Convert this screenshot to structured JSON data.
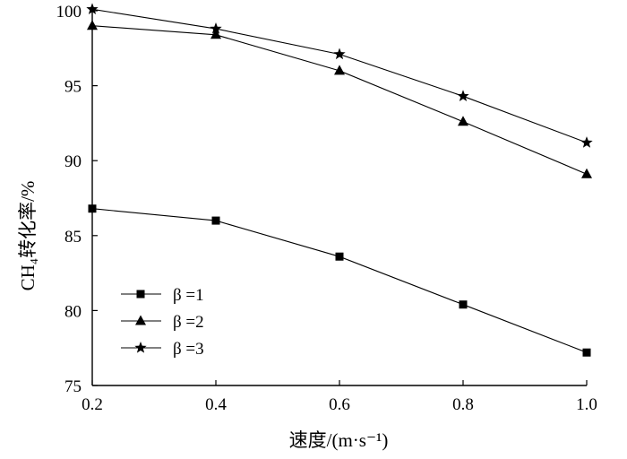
{
  "chart_data": {
    "type": "line",
    "x": [
      0.2,
      0.4,
      0.6,
      0.8,
      1.0
    ],
    "x_tick_labels": [
      "0.2",
      "0.4",
      "0.6",
      "0.8",
      "1.0"
    ],
    "y_tick_labels": [
      "75",
      "80",
      "85",
      "90",
      "95",
      "100"
    ],
    "xlim": [
      0.2,
      1.0
    ],
    "ylim": [
      75,
      100
    ],
    "xlabel": "速度/(m·s⁻¹)",
    "ylabel": "CH₄转化率/%",
    "grid": false,
    "legend_position": "bottom-left",
    "series": [
      {
        "name": "β =1",
        "marker": "square",
        "values": [
          86.8,
          86.0,
          83.6,
          80.4,
          77.2
        ]
      },
      {
        "name": "β =2",
        "marker": "triangle",
        "values": [
          99.0,
          98.4,
          96.0,
          92.6,
          89.1
        ]
      },
      {
        "name": "β =3",
        "marker": "star",
        "values": [
          100.1,
          98.8,
          97.1,
          94.3,
          91.2
        ]
      }
    ]
  }
}
